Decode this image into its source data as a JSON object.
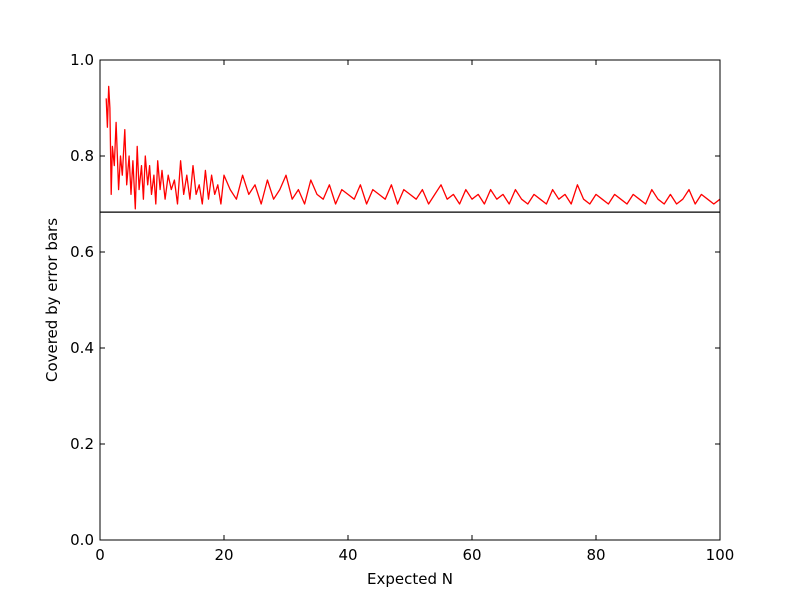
{
  "chart_data": {
    "type": "line",
    "xlabel": "Expected N",
    "ylabel": "Covered by error bars",
    "xlim": [
      0,
      100
    ],
    "ylim": [
      0.0,
      1.0
    ],
    "x_ticks": [
      "0",
      "20",
      "40",
      "60",
      "80",
      "100"
    ],
    "y_ticks": [
      "0.0",
      "0.2",
      "0.4",
      "0.6",
      "0.8",
      "1.0"
    ],
    "grid": false,
    "series": [
      {
        "color": "#ff0000",
        "x": [
          1.0,
          1.2,
          1.4,
          1.6,
          1.8,
          2.0,
          2.3,
          2.6,
          3.0,
          3.3,
          3.6,
          4.0,
          4.3,
          4.7,
          5.0,
          5.3,
          5.7,
          6.0,
          6.3,
          6.7,
          7.0,
          7.3,
          7.7,
          8.0,
          8.3,
          8.7,
          9.0,
          9.3,
          9.7,
          10.0,
          10.5,
          11.0,
          11.5,
          12.0,
          12.5,
          13.0,
          13.5,
          14.0,
          14.5,
          15.0,
          15.5,
          16.0,
          16.5,
          17.0,
          17.5,
          18.0,
          18.5,
          19.0,
          19.5,
          20.0,
          21,
          22,
          23,
          24,
          25,
          26,
          27,
          28,
          29,
          30,
          31,
          32,
          33,
          34,
          35,
          36,
          37,
          38,
          39,
          40,
          41,
          42,
          43,
          44,
          45,
          46,
          47,
          48,
          49,
          50,
          51,
          52,
          53,
          54,
          55,
          56,
          57,
          58,
          59,
          60,
          61,
          62,
          63,
          64,
          65,
          66,
          67,
          68,
          69,
          70,
          71,
          72,
          73,
          74,
          75,
          76,
          77,
          78,
          79,
          80,
          81,
          82,
          83,
          84,
          85,
          86,
          87,
          88,
          89,
          90,
          91,
          92,
          93,
          94,
          95,
          96,
          97,
          98,
          99,
          100
        ],
        "y": [
          0.92,
          0.86,
          0.945,
          0.9,
          0.72,
          0.82,
          0.78,
          0.87,
          0.73,
          0.8,
          0.76,
          0.855,
          0.74,
          0.8,
          0.72,
          0.79,
          0.69,
          0.82,
          0.73,
          0.78,
          0.71,
          0.8,
          0.74,
          0.78,
          0.72,
          0.76,
          0.7,
          0.79,
          0.73,
          0.77,
          0.71,
          0.76,
          0.73,
          0.75,
          0.7,
          0.79,
          0.72,
          0.76,
          0.71,
          0.78,
          0.72,
          0.74,
          0.7,
          0.77,
          0.71,
          0.76,
          0.72,
          0.74,
          0.7,
          0.76,
          0.73,
          0.71,
          0.76,
          0.72,
          0.74,
          0.7,
          0.75,
          0.71,
          0.73,
          0.76,
          0.71,
          0.73,
          0.7,
          0.75,
          0.72,
          0.71,
          0.74,
          0.7,
          0.73,
          0.72,
          0.71,
          0.74,
          0.7,
          0.73,
          0.72,
          0.71,
          0.74,
          0.7,
          0.73,
          0.72,
          0.71,
          0.73,
          0.7,
          0.72,
          0.74,
          0.71,
          0.72,
          0.7,
          0.73,
          0.71,
          0.72,
          0.7,
          0.73,
          0.71,
          0.72,
          0.7,
          0.73,
          0.71,
          0.7,
          0.72,
          0.71,
          0.7,
          0.73,
          0.71,
          0.72,
          0.7,
          0.74,
          0.71,
          0.7,
          0.72,
          0.71,
          0.7,
          0.72,
          0.71,
          0.7,
          0.72,
          0.71,
          0.7,
          0.73,
          0.71,
          0.7,
          0.72,
          0.7,
          0.71,
          0.73,
          0.7,
          0.72,
          0.71,
          0.7,
          0.71
        ]
      }
    ],
    "reference_lines": [
      {
        "orientation": "horizontal",
        "y": 0.683,
        "color": "#000000"
      }
    ]
  }
}
